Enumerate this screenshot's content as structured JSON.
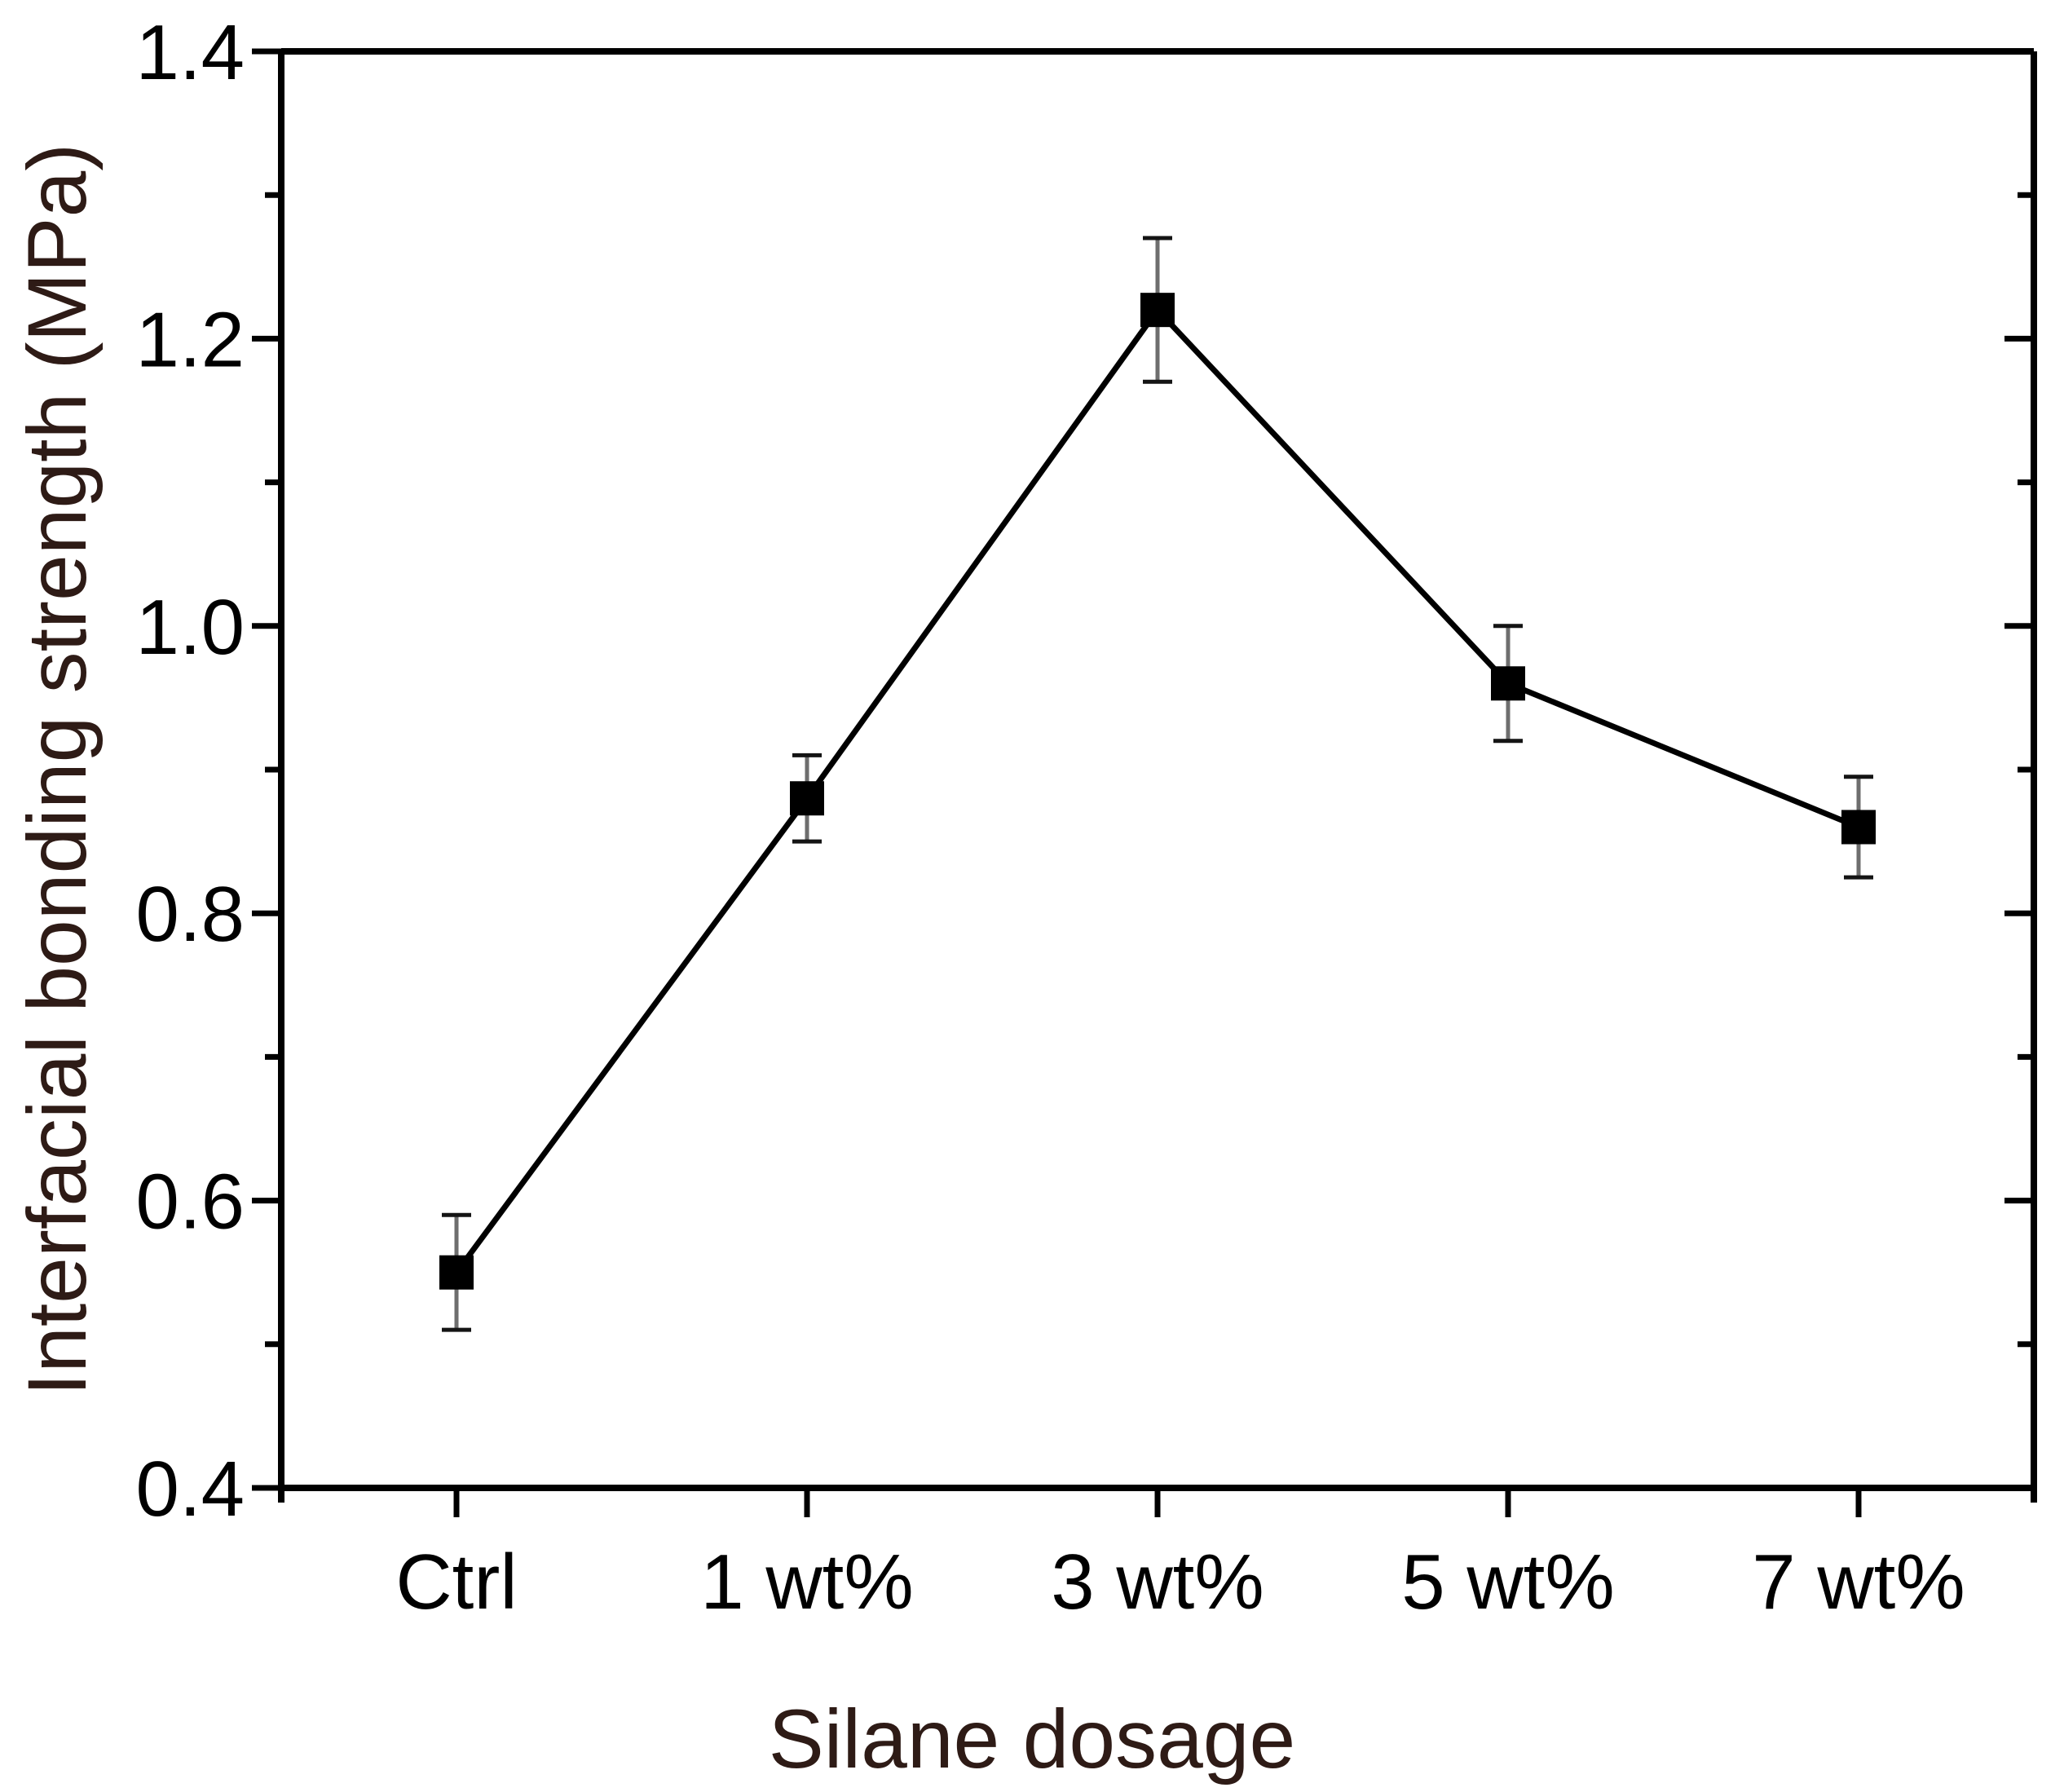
{
  "chart_data": {
    "type": "line",
    "categories": [
      "Ctrl",
      "1 wt%",
      "3 wt%",
      "5 wt%",
      "7 wt%"
    ],
    "series": [
      {
        "name": "Interfacial bonding strength",
        "values": [
          0.55,
          0.88,
          1.22,
          0.96,
          0.86
        ],
        "errors": [
          0.04,
          0.03,
          0.05,
          0.04,
          0.035
        ]
      }
    ],
    "title": "",
    "xlabel": "Silane dosage",
    "ylabel": "Interfacial bonding strength (MPa)",
    "ylim": [
      0.4,
      1.4
    ],
    "y_major_step": 0.2,
    "y_minor_step": 0.1,
    "y_tick_labels": [
      "0.4",
      "0.6",
      "0.8",
      "1.0",
      "1.2",
      "1.4"
    ],
    "grid": false,
    "legend": false,
    "marker": "filled-square",
    "frame": "box",
    "colors": {
      "axis": "#000000",
      "tick_label": "#000000",
      "axis_title": "#2e1b16",
      "line": "#000000",
      "marker": "#000000",
      "error_line": "#6e6e6e",
      "error_cap": "#141414",
      "background": "#ffffff"
    }
  }
}
